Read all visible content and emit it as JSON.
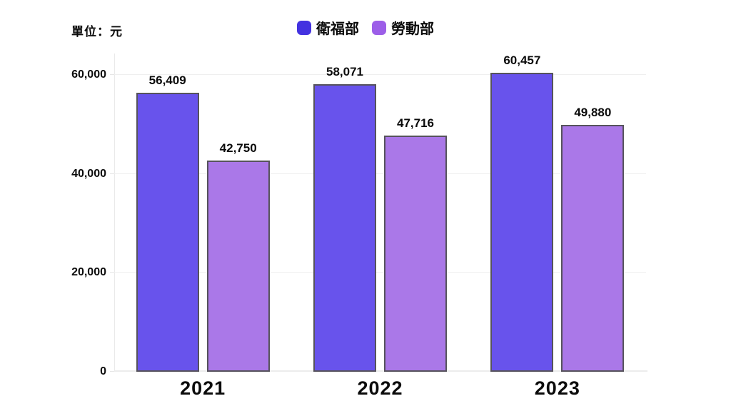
{
  "chart_data": {
    "type": "bar",
    "unit_label": "單位：元",
    "categories": [
      "2021",
      "2022",
      "2023"
    ],
    "series": [
      {
        "name": "衛福部",
        "bar_color": "#6853ec",
        "legend_color": "#4332e0",
        "values": [
          56409,
          58071,
          60457
        ],
        "value_labels": [
          "56,409",
          "58,071",
          "60,457"
        ]
      },
      {
        "name": "勞動部",
        "bar_color": "#aa78e8",
        "legend_color": "#9c5ee8",
        "values": [
          42750,
          47716,
          49880
        ],
        "value_labels": [
          "42,750",
          "47,716",
          "49,880"
        ]
      }
    ],
    "y_ticks": [
      0,
      20000,
      40000,
      60000
    ],
    "y_tick_labels": [
      "0",
      "20,000",
      "40,000",
      "60,000"
    ],
    "ylim": [
      0,
      65000
    ],
    "grid": true,
    "legend_position": "top-center",
    "bar_border_color": "#56535c",
    "grid_color": "#efefef",
    "text_color": "#0b0b0b"
  }
}
